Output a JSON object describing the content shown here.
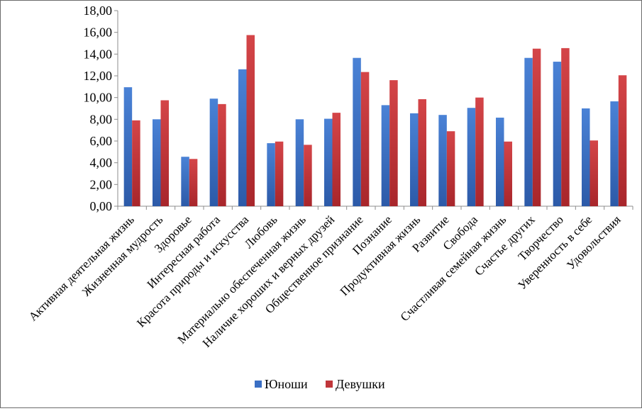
{
  "chart_data": {
    "type": "bar",
    "ylim": [
      0,
      18
    ],
    "yticks": [
      "0,00",
      "2,00",
      "4,00",
      "6,00",
      "8,00",
      "10,00",
      "12,00",
      "14,00",
      "16,00",
      "18,00"
    ],
    "grid": false,
    "legend_position": "bottom",
    "categories": [
      "Активная деятельная жизнь",
      "Жизненная мудрость",
      "Здоровье",
      "Интересная работа",
      "Красота природы и искусства",
      "Любовь",
      "Материально обеспеченная жизнь",
      "Наличие хороших и верных друзей",
      "Общественное признание",
      "Познание",
      "Продуктивная жизнь",
      "Развитие",
      "Свобода",
      "Счастливая семейная жизнь",
      "Счастье других",
      "Творчество",
      "Уверенность в себе",
      "Удовольствия"
    ],
    "series": [
      {
        "name": "Юноши",
        "color": "#3a6fc4",
        "values": [
          10.95,
          8.0,
          4.55,
          9.9,
          12.6,
          5.8,
          8.0,
          8.05,
          13.65,
          9.3,
          8.55,
          8.4,
          9.05,
          8.15,
          13.65,
          13.3,
          9.0,
          9.65
        ]
      },
      {
        "name": "Девушки",
        "color": "#c0363a",
        "values": [
          7.9,
          9.75,
          4.35,
          9.4,
          15.75,
          5.95,
          5.65,
          8.6,
          12.35,
          11.6,
          9.85,
          6.9,
          10.0,
          5.95,
          14.5,
          14.55,
          6.05,
          12.05
        ]
      }
    ]
  }
}
